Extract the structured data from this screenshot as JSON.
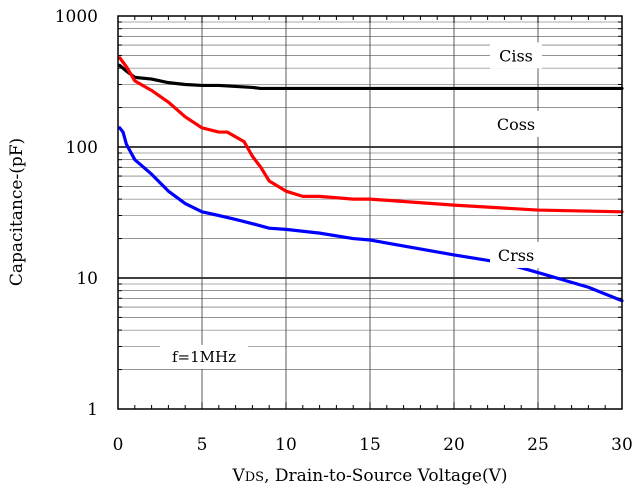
{
  "chart_data": {
    "type": "line",
    "x_label_sub": "DS",
    "x_label_prefix": "V",
    "x_label_rest": ", Drain-to-Source Voltage(V)",
    "ylabel": "Capacitance-(pF)",
    "xlim": [
      0,
      30
    ],
    "ylim": [
      1,
      1000
    ],
    "y_scale": "log",
    "x_ticks": [
      "0",
      "5",
      "10",
      "15",
      "20",
      "25",
      "30"
    ],
    "y_ticks": [
      "1",
      "10",
      "100",
      "1000"
    ],
    "grid": true,
    "annotation": "f=1MHz",
    "series": [
      {
        "name": "Ciss",
        "color": "#000000",
        "points": [
          [
            0.1,
            420
          ],
          [
            0.5,
            380
          ],
          [
            1,
            340
          ],
          [
            2,
            330
          ],
          [
            3,
            310
          ],
          [
            4,
            300
          ],
          [
            5,
            295
          ],
          [
            6,
            295
          ],
          [
            7,
            290
          ],
          [
            8,
            285
          ],
          [
            8.5,
            280
          ],
          [
            10,
            280
          ],
          [
            15,
            280
          ],
          [
            20,
            280
          ],
          [
            25,
            280
          ],
          [
            30,
            280
          ]
        ]
      },
      {
        "name": "Coss",
        "color": "#ff0000",
        "points": [
          [
            0.1,
            480
          ],
          [
            0.5,
            410
          ],
          [
            1,
            320
          ],
          [
            2,
            270
          ],
          [
            3,
            220
          ],
          [
            4,
            170
          ],
          [
            5,
            140
          ],
          [
            6,
            130
          ],
          [
            6.5,
            130
          ],
          [
            7.5,
            110
          ],
          [
            8,
            85
          ],
          [
            8.5,
            70
          ],
          [
            9,
            55
          ],
          [
            10,
            46
          ],
          [
            11,
            42
          ],
          [
            12,
            42
          ],
          [
            13,
            41
          ],
          [
            14,
            40
          ],
          [
            15,
            40
          ],
          [
            20,
            36
          ],
          [
            25,
            33
          ],
          [
            30,
            32
          ]
        ]
      },
      {
        "name": "Crss",
        "color": "#0000ff",
        "points": [
          [
            0.1,
            140
          ],
          [
            0.3,
            130
          ],
          [
            0.5,
            105
          ],
          [
            1,
            80
          ],
          [
            2,
            62
          ],
          [
            3,
            46
          ],
          [
            4,
            37
          ],
          [
            5,
            32
          ],
          [
            6,
            30
          ],
          [
            7,
            28
          ],
          [
            8,
            26
          ],
          [
            9,
            24
          ],
          [
            10,
            23.5
          ],
          [
            12,
            22
          ],
          [
            14,
            20
          ],
          [
            15,
            19.5
          ],
          [
            20,
            15
          ],
          [
            23,
            13
          ],
          [
            25,
            11
          ],
          [
            28,
            8.5
          ],
          [
            30,
            6.7
          ]
        ]
      }
    ]
  }
}
